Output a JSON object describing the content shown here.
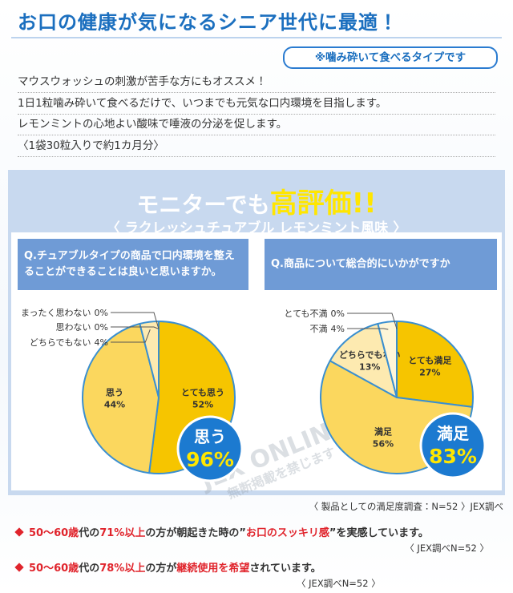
{
  "header": {
    "title": "お口の健康が気になるシニア世代に最適！",
    "badge": "※噛み砕いて食べるタイプです",
    "lines": [
      "マウスウォッシュの刺激が苦手な方にもオススメ！",
      "1日1粒噛み砕いて食べるだけで、いつまでも元気な口内環境を目指します。",
      "レモンミントの心地よい酸味で唾液の分泌を促します。",
      "〈1袋30粒入りで約1カ月分〉"
    ]
  },
  "panel": {
    "heading": "モニターでも",
    "highlight": "高評価!!",
    "product": "〈 ラクレッシュチュアブル レモンミント風味 〉",
    "watermark": [
      "JEX ONLINE",
      "無断掲載を禁じます"
    ]
  },
  "chart_data": [
    {
      "type": "pie",
      "title": "Q.チュアブルタイプの商品で口内環境を整えることができることは良いと思いますか。",
      "categories": [
        "とても思う",
        "思う",
        "どちらでもない",
        "思わない",
        "まったく思わない"
      ],
      "values": [
        52,
        44,
        4,
        0,
        0
      ],
      "value_labels": [
        "52%",
        "44%",
        "4%",
        "0%",
        "0%"
      ],
      "colors": [
        "#f6c500",
        "#fbd75e",
        "#fdeab0",
        "#fff6d8",
        "#ffffff"
      ],
      "callout": {
        "label": "思う",
        "value": "96%"
      }
    },
    {
      "type": "pie",
      "title": "Q.商品について総合的にいかがですか",
      "categories": [
        "とても満足",
        "満足",
        "どちらでもない",
        "不満",
        "とても不満"
      ],
      "values": [
        27,
        56,
        13,
        4,
        0
      ],
      "value_labels": [
        "27%",
        "56%",
        "13%",
        "4%",
        "0%"
      ],
      "colors": [
        "#f6c500",
        "#fbd75e",
        "#fdeab0",
        "#fff6d8",
        "#ffffff"
      ],
      "callout": {
        "label": "満足",
        "value": "83%"
      }
    }
  ],
  "notes": {
    "survey": "〈 製品としての満足度調査：N=52 〉JEX調べ",
    "bullets": [
      {
        "segments": [
          {
            "text": "50〜60歳",
            "style": "em"
          },
          {
            "text": "代の",
            "style": "plain"
          },
          {
            "text": "71%以上",
            "style": "em"
          },
          {
            "text": "の方が朝起きた時の",
            "style": "plain"
          },
          {
            "text": "”",
            "style": "plain"
          },
          {
            "text": "お口のスッキリ感",
            "style": "em"
          },
          {
            "text": "”",
            "style": "plain"
          },
          {
            "text": "を実感しています。",
            "style": "plain"
          }
        ],
        "source": "〈 JEX調べN=52 〉"
      },
      {
        "segments": [
          {
            "text": "50〜60歳",
            "style": "em"
          },
          {
            "text": "代の",
            "style": "plain"
          },
          {
            "text": "78%以上",
            "style": "em"
          },
          {
            "text": "の方が",
            "style": "plain"
          },
          {
            "text": "継続使用を希望",
            "style": "em"
          },
          {
            "text": "されています。",
            "style": "plain"
          }
        ],
        "source": "〈 JEX調べN=52 〉"
      }
    ]
  }
}
